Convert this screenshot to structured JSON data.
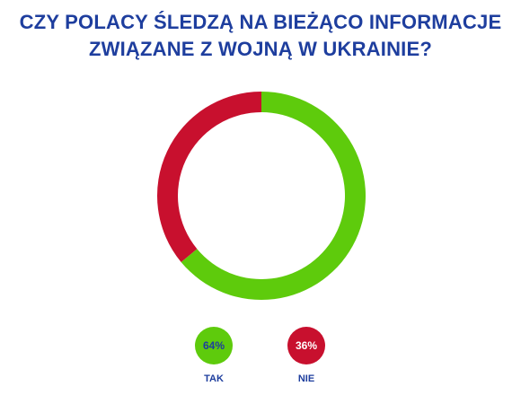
{
  "title_lines": [
    "CZY POLACY ŚLEDZĄ NA BIEŻĄCO INFORMACJE",
    "ZWIĄZANE Z WOJNĄ W UKRAINIE?"
  ],
  "colors": {
    "title": "#1e3e9e",
    "tak": "#5ecb0c",
    "nie": "#c8102e",
    "tak_value_text": "#1e3e9e",
    "nie_value_text": "#ffffff"
  },
  "chart_data": {
    "type": "pie",
    "style": "donut",
    "title": "CZY POLACY ŚLEDZĄ NA BIEŻĄCO INFORMACJE ZWIĄZANE Z WOJNĄ W UKRAINIE?",
    "categories": [
      "TAK",
      "NIE"
    ],
    "values": [
      64,
      36
    ],
    "value_labels": [
      "64%",
      "36%"
    ],
    "legend_placement": "bottom"
  }
}
